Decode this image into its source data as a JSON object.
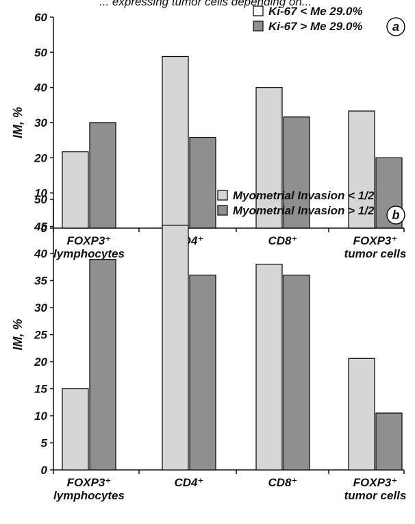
{
  "header": {
    "partial_text": "... expressing tumor cells depending on..."
  },
  "chart_data": [
    {
      "type": "bar",
      "panel": "a",
      "categories": [
        [
          "FOXP3⁺",
          "lymphocytes"
        ],
        [
          "CD4⁺"
        ],
        [
          "CD8⁺"
        ],
        [
          "FOXP3⁺",
          "tumor cells"
        ]
      ],
      "series": [
        {
          "name": "Ki-67 < Me 29.0%",
          "values": [
            21.7,
            48.8,
            40.0,
            33.3
          ],
          "color": "#d6d6d6"
        },
        {
          "name": "Ki-67 > Me 29.0%",
          "values": [
            30.0,
            25.8,
            31.6,
            20.0
          ],
          "color": "#8f8f8f"
        }
      ],
      "legend_swatches": [
        "#ffffff",
        "#8f8f8f"
      ],
      "ylabel": "IM, %",
      "ylim": [
        0,
        60
      ],
      "yticks": [
        0,
        10,
        20,
        30,
        40,
        50,
        60
      ],
      "legend_position": "top-right"
    },
    {
      "type": "bar",
      "panel": "b",
      "categories": [
        [
          "FOXP3⁺",
          "lymphocytes"
        ],
        [
          "CD4⁺"
        ],
        [
          "CD8⁺"
        ],
        [
          "FOXP3⁺",
          "tumor cells"
        ]
      ],
      "series": [
        {
          "name": "Myometrial Invasion < 1/2",
          "values": [
            15.0,
            45.2,
            38.0,
            20.6
          ],
          "color": "#d6d6d6"
        },
        {
          "name": "Myometrial Invasion > 1/2",
          "values": [
            38.9,
            36.0,
            36.0,
            10.5
          ],
          "color": "#8f8f8f"
        }
      ],
      "legend_swatches": [
        "#d6d6d6",
        "#8f8f8f"
      ],
      "ylabel": "IM, %",
      "ylim": [
        0,
        50
      ],
      "yticks": [
        0,
        5,
        10,
        15,
        20,
        25,
        30,
        35,
        40,
        45,
        50
      ],
      "legend_position": "top-right"
    }
  ]
}
